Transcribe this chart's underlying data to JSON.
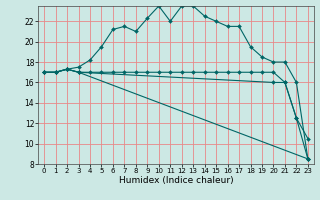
{
  "xlabel": "Humidex (Indice chaleur)",
  "bg_color": "#cce8e4",
  "line_color": "#006666",
  "grid_color": "#e88888",
  "ylim": [
    8,
    23.5
  ],
  "xlim": [
    -0.5,
    23.5
  ],
  "yticks": [
    8,
    10,
    12,
    14,
    16,
    18,
    20,
    22
  ],
  "xticks": [
    0,
    1,
    2,
    3,
    4,
    5,
    6,
    7,
    8,
    9,
    10,
    11,
    12,
    13,
    14,
    15,
    16,
    17,
    18,
    19,
    20,
    21,
    22,
    23
  ],
  "line1_x": [
    0,
    1,
    2,
    3,
    4,
    5,
    6,
    7,
    8,
    9,
    10,
    11,
    12,
    13,
    14,
    15,
    16,
    17,
    18,
    19,
    20,
    21,
    22,
    23
  ],
  "line1_y": [
    17,
    17,
    17.3,
    17.5,
    18.2,
    19.5,
    21.2,
    21.5,
    21.0,
    22.3,
    23.5,
    22.0,
    23.5,
    23.5,
    22.5,
    22.0,
    21.5,
    21.5,
    19.5,
    18.5,
    18.0,
    18.0,
    16.0,
    8.5
  ],
  "line2_x": [
    0,
    1,
    2,
    3,
    4,
    5,
    6,
    7,
    8,
    9,
    10,
    11,
    12,
    13,
    14,
    15,
    16,
    17,
    18,
    19,
    20,
    21,
    22,
    23
  ],
  "line2_y": [
    17,
    17,
    17.3,
    17.0,
    17.0,
    17.0,
    17.0,
    17.0,
    17.0,
    17.0,
    17.0,
    17.0,
    17.0,
    17.0,
    17.0,
    17.0,
    17.0,
    17.0,
    17.0,
    17.0,
    17.0,
    16.0,
    12.5,
    10.5
  ],
  "line3_x": [
    0,
    1,
    2,
    3,
    20,
    21,
    22,
    23
  ],
  "line3_y": [
    17,
    17,
    17.3,
    17.0,
    16.0,
    16.0,
    12.5,
    8.5
  ],
  "line4_x": [
    0,
    1,
    2,
    3,
    23
  ],
  "line4_y": [
    17,
    17,
    17.3,
    17.0,
    8.5
  ]
}
